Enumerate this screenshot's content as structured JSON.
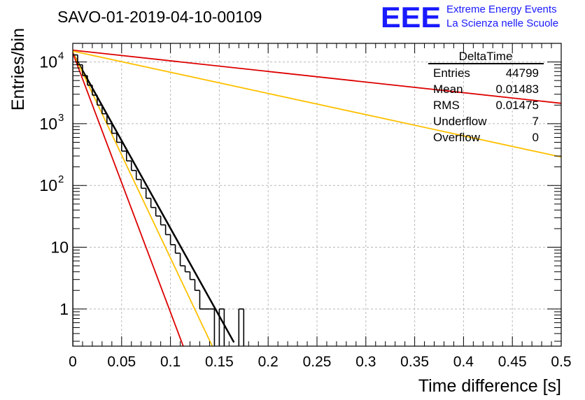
{
  "run_title": "SAVO-01-2019-04-10-00109",
  "logo": {
    "text": "EEE",
    "line1": "Extreme Energy Events",
    "line2": "La Scienza nelle Scuole",
    "color": "#1a1aff"
  },
  "stats": {
    "title": "DeltaTime",
    "rows": [
      {
        "label": "Entries",
        "value": "44799"
      },
      {
        "label": "Mean",
        "value": "0.01483"
      },
      {
        "label": "RMS",
        "value": "0.01475"
      },
      {
        "label": "Underflow",
        "value": "7"
      },
      {
        "label": "Overflow",
        "value": "0"
      }
    ]
  },
  "chart_data": {
    "type": "histogram",
    "xlabel": "Time difference [s]",
    "ylabel": "Entries/bin",
    "xlim": [
      0,
      0.5
    ],
    "ylim": [
      0.25,
      20000
    ],
    "yscale": "log",
    "grid": true,
    "x_ticks": [
      "0",
      "0.05",
      "0.1",
      "0.15",
      "0.2",
      "0.25",
      "0.3",
      "0.35",
      "0.4",
      "0.45",
      "0.5"
    ],
    "y_ticks": [
      {
        "value": 1,
        "label": "1"
      },
      {
        "value": 10,
        "label": "10"
      },
      {
        "value": 100,
        "label": "10",
        "exp": "2"
      },
      {
        "value": 1000,
        "label": "10",
        "exp": "3"
      },
      {
        "value": 10000,
        "label": "10",
        "exp": "4"
      }
    ],
    "histogram": {
      "bin_width": 0.005,
      "counts": [
        13000,
        9000,
        6000,
        4200,
        2900,
        2000,
        1450,
        1000,
        700,
        500,
        360,
        250,
        175,
        125,
        90,
        62,
        44,
        32,
        23,
        16,
        11,
        8,
        5,
        4,
        3,
        2,
        1,
        1,
        1,
        0,
        1,
        0,
        0,
        0,
        1,
        0
      ],
      "color": "#000000"
    },
    "curves": [
      {
        "color": "#000000",
        "y0": 14000,
        "slope": -65.4,
        "x_max": 0.165,
        "width": 2.5
      },
      {
        "color": "#ffc000",
        "y0": 14500,
        "slope": -76.8,
        "x_max": 0.145,
        "width": 1.8
      },
      {
        "color": "#dd0000",
        "y0": 14000,
        "slope": -96.7,
        "x_max": 0.115,
        "width": 1.8
      },
      {
        "color": "#dd0000",
        "y0": 15500,
        "slope": -3.96,
        "x_max": 0.5,
        "width": 1.8
      },
      {
        "color": "#ffc000",
        "y0": 15000,
        "slope": -7.9,
        "x_max": 0.5,
        "width": 1.8
      }
    ]
  }
}
